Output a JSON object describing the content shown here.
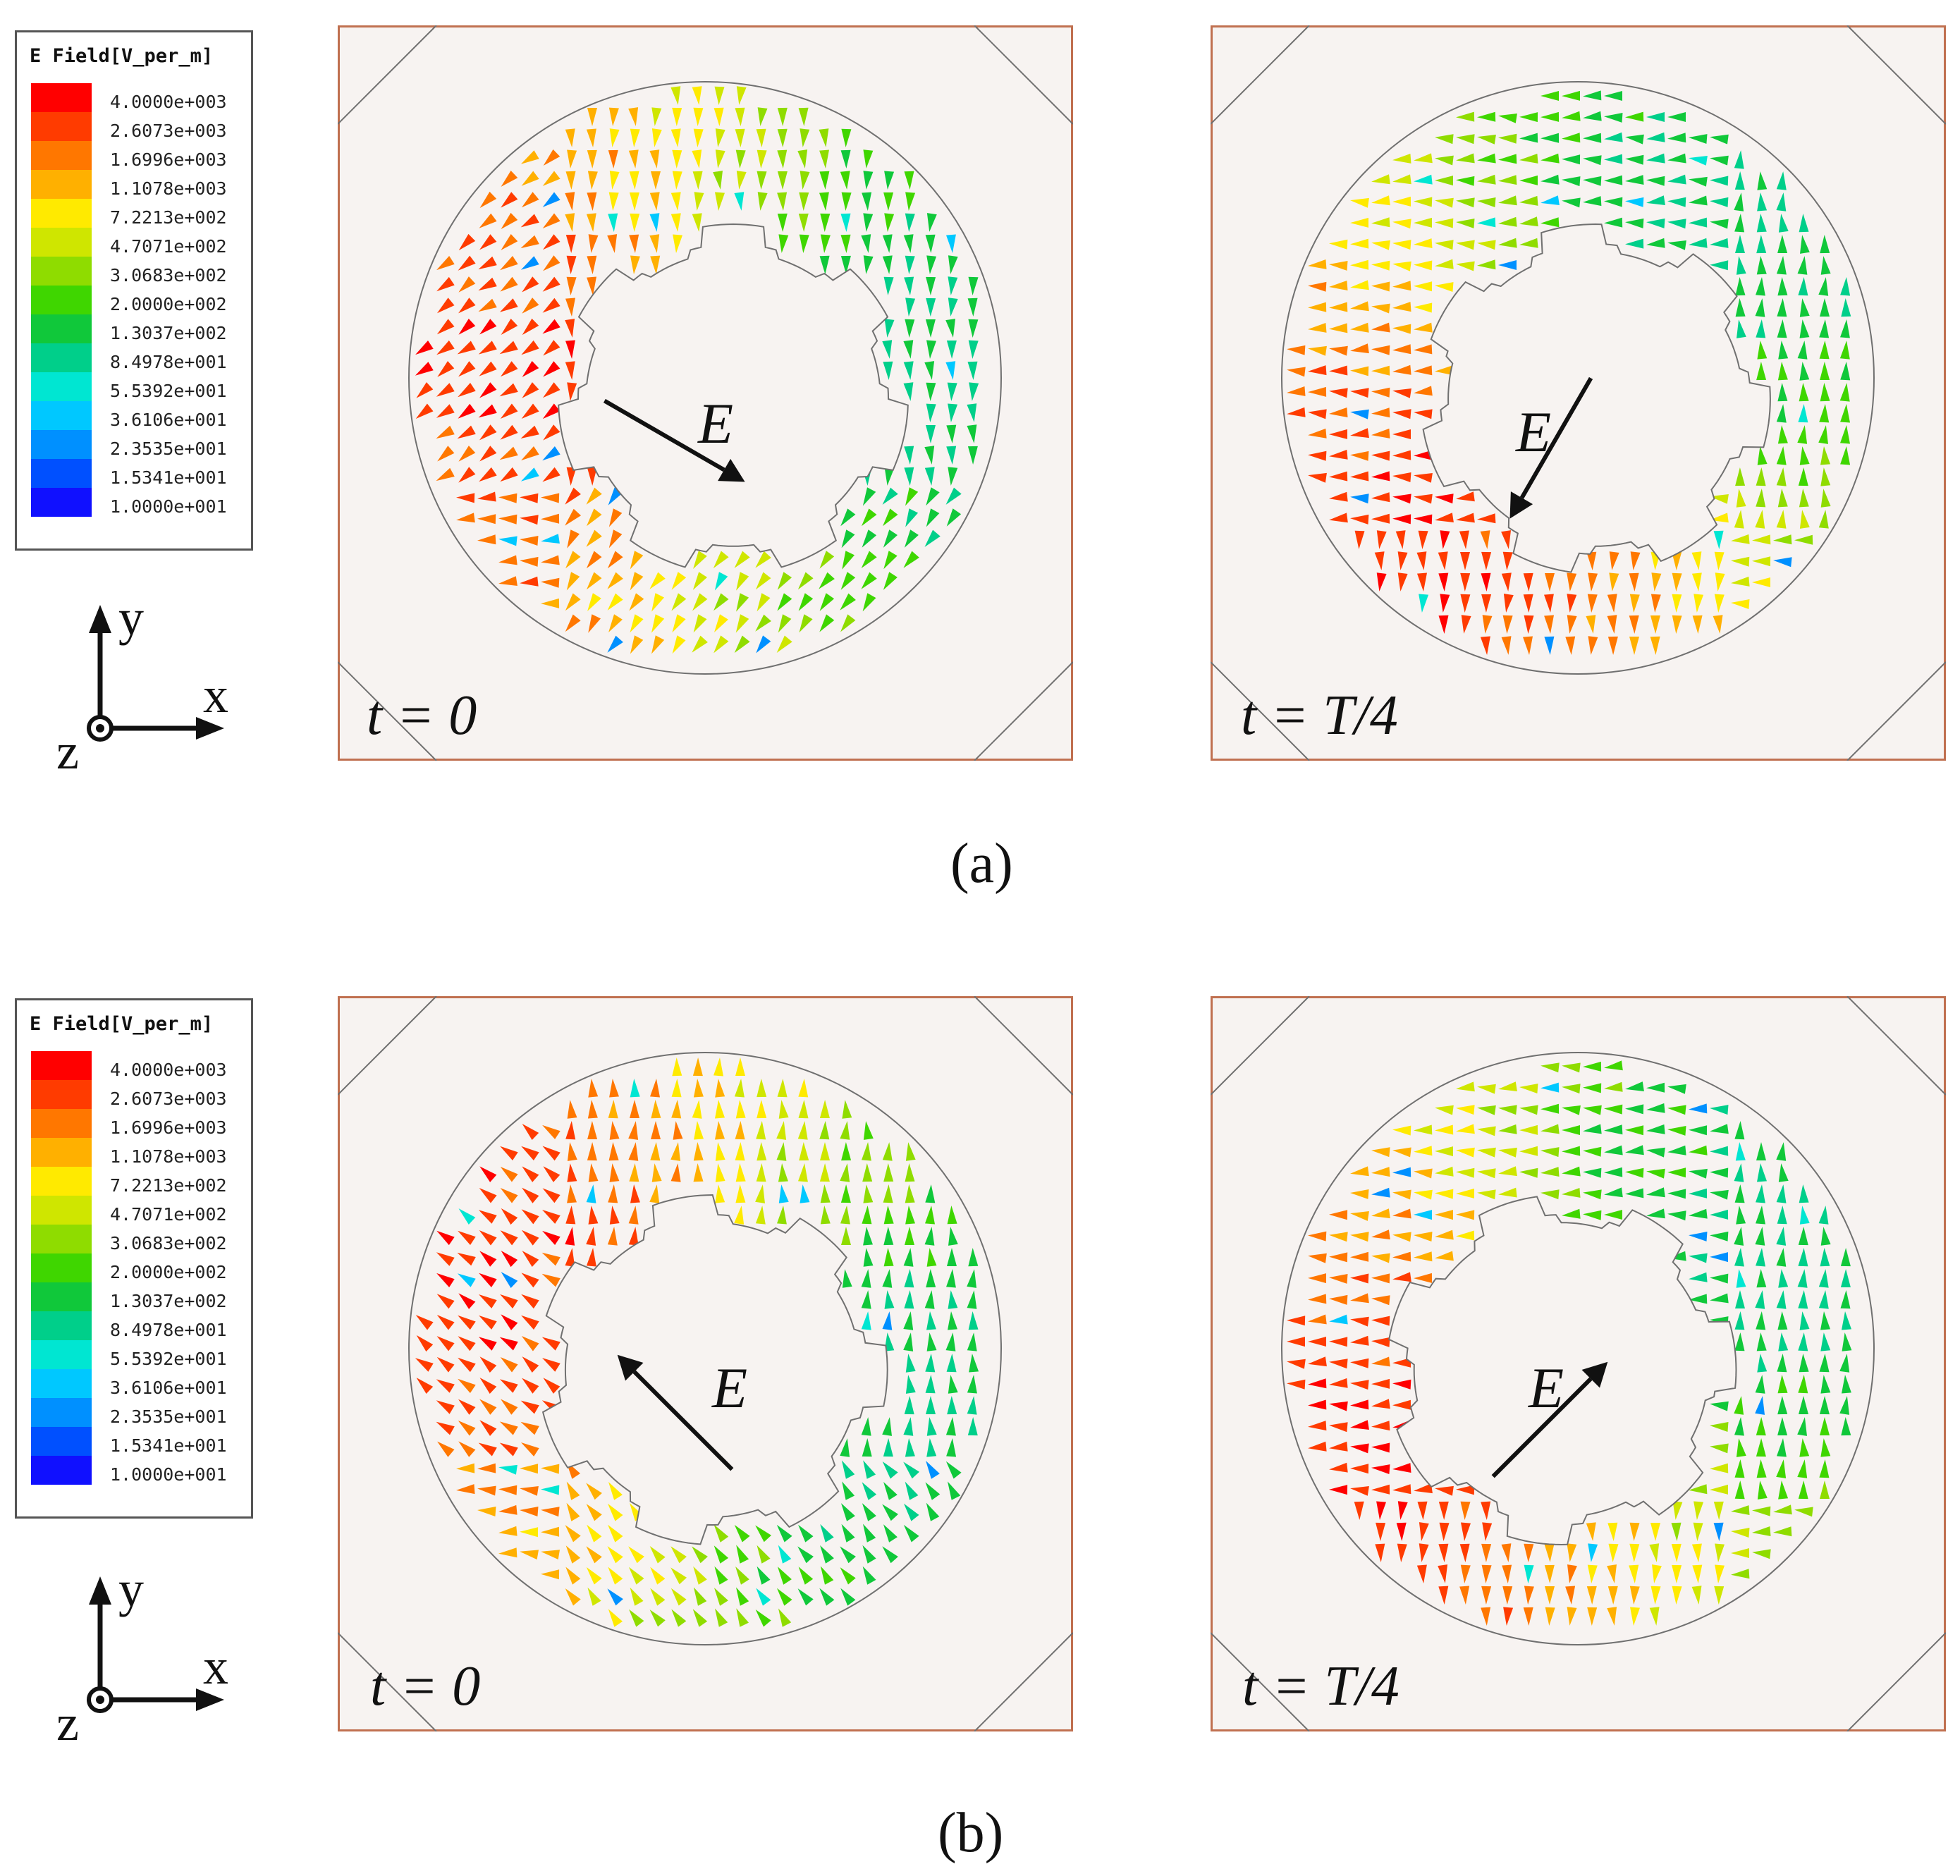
{
  "figure": {
    "rows": [
      {
        "id": "a",
        "caption": "(a)",
        "legend": {
          "title": "E Field[V_per_m]",
          "levels": [
            "4.0000e+003",
            "2.6073e+003",
            "1.6996e+003",
            "1.1078e+003",
            "7.2213e+002",
            "4.7071e+002",
            "3.0683e+002",
            "2.0000e+002",
            "1.3037e+002",
            "8.4978e+001",
            "5.5392e+001",
            "3.6106e+001",
            "2.3535e+001",
            "1.5341e+001",
            "1.0000e+001"
          ]
        },
        "axes": {
          "x": "x",
          "y": "y",
          "z": "z"
        },
        "panels": [
          {
            "time_label": "t = 0",
            "field_label": "E",
            "field_direction_deg": -30
          },
          {
            "time_label": "t = T/4",
            "field_label": "E",
            "field_direction_deg": -120
          }
        ]
      },
      {
        "id": "b",
        "caption": "(b)",
        "legend": {
          "title": "E Field[V_per_m]",
          "levels": [
            "4.0000e+003",
            "2.6073e+003",
            "1.6996e+003",
            "1.1078e+003",
            "7.2213e+002",
            "4.7071e+002",
            "3.0683e+002",
            "2.0000e+002",
            "1.3037e+002",
            "8.4978e+001",
            "5.5392e+001",
            "3.6106e+001",
            "2.3535e+001",
            "1.5341e+001",
            "1.0000e+001"
          ]
        },
        "axes": {
          "x": "x",
          "y": "y",
          "z": "z"
        },
        "panels": [
          {
            "time_label": "t = 0",
            "field_label": "E",
            "field_direction_deg": 135
          },
          {
            "time_label": "t = T/4",
            "field_label": "E",
            "field_direction_deg": 45
          }
        ]
      }
    ],
    "colors": {
      "scale": [
        "#ff0000",
        "#ff3b00",
        "#ff7700",
        "#ffb000",
        "#ffea00",
        "#cfe600",
        "#8fdc00",
        "#3fd600",
        "#10c83a",
        "#00cf8a",
        "#00e6d2",
        "#00c8ff",
        "#0090ff",
        "#0050ff",
        "#1010ff"
      ],
      "panel_bg": "#f7f3f1",
      "panel_border": "#c07050",
      "outline": "#707070"
    }
  }
}
